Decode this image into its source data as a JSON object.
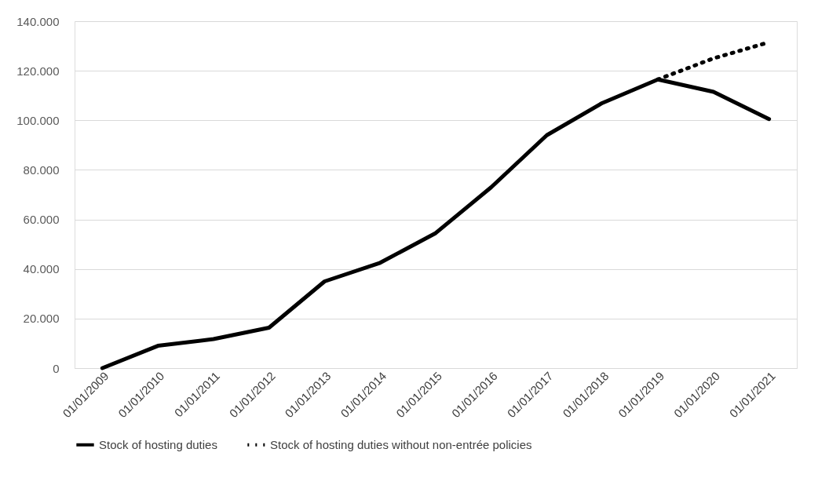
{
  "chart_data": {
    "type": "line",
    "categories": [
      "01/01/2009",
      "01/01/2010",
      "01/01/2011",
      "01/01/2012",
      "01/01/2013",
      "01/01/2014",
      "01/01/2015",
      "01/01/2016",
      "01/01/2017",
      "01/01/2018",
      "01/01/2019",
      "01/01/2020",
      "01/01/2021"
    ],
    "series": [
      {
        "name": "Stock of hosting duties",
        "color": "#000000",
        "line_style": "solid",
        "values": [
          0,
          9000,
          11700,
          16300,
          35000,
          42500,
          54500,
          73000,
          94000,
          107000,
          116500,
          111500,
          100500
        ]
      },
      {
        "name": "Stock of hosting duties without non-entrée policies",
        "color": "#000000",
        "line_style": "dotted",
        "values": [
          null,
          null,
          null,
          null,
          null,
          null,
          null,
          null,
          null,
          null,
          116500,
          125000,
          131500
        ]
      }
    ],
    "ylim": [
      0,
      140000
    ],
    "yticks": [
      {
        "value": 0,
        "label": "0"
      },
      {
        "value": 20000,
        "label": "20.000"
      },
      {
        "value": 40000,
        "label": "40.000"
      },
      {
        "value": 60000,
        "label": "60.000"
      },
      {
        "value": 80000,
        "label": "80.000"
      },
      {
        "value": 100000,
        "label": "100.000"
      },
      {
        "value": 120000,
        "label": "120.000"
      },
      {
        "value": 140000,
        "label": "140.000"
      }
    ],
    "grid": "y",
    "legend": "bottom",
    "marker": "none"
  }
}
